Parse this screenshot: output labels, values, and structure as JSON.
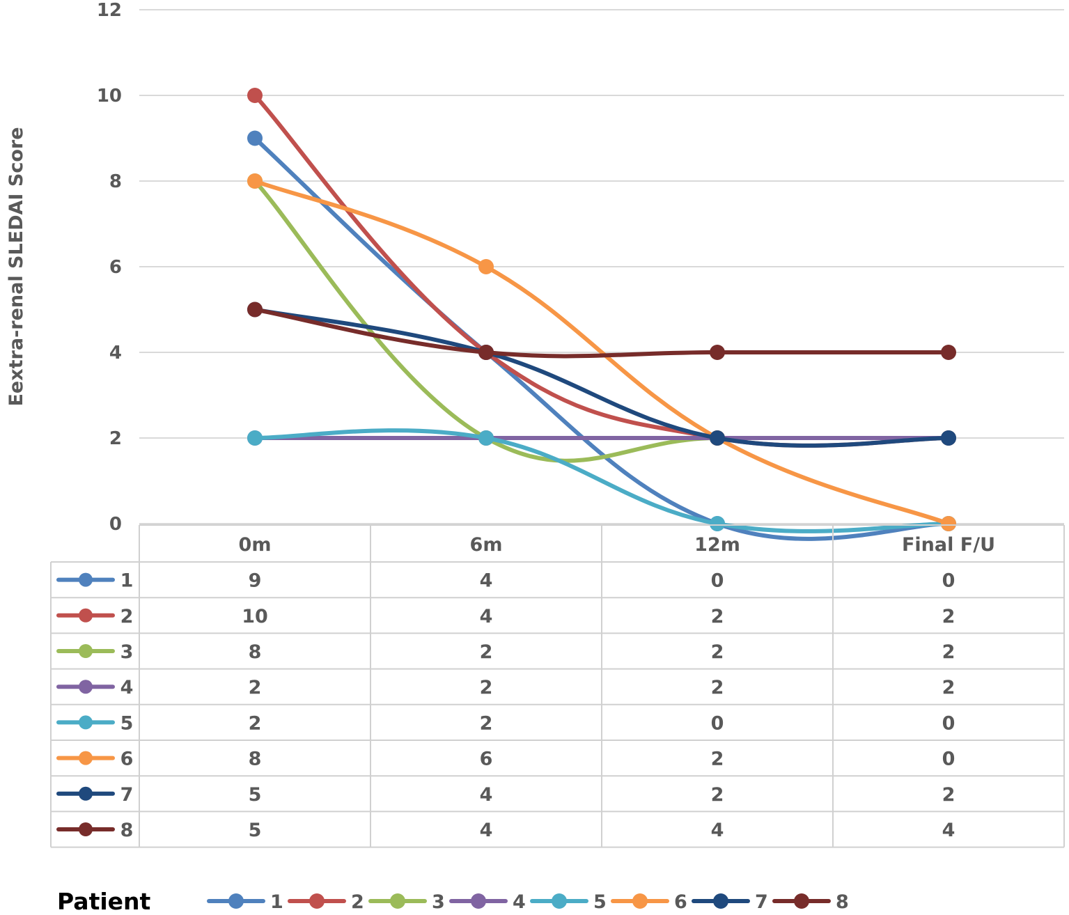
{
  "chart_data": {
    "type": "line",
    "title": "",
    "xlabel": "",
    "ylabel": "Eextra-renal SLEDAI Score",
    "ylim": [
      0,
      12
    ],
    "yticks": [
      0,
      2,
      4,
      6,
      8,
      10,
      12
    ],
    "grid": true,
    "categories": [
      "0m",
      "6m",
      "12m",
      "Final F/U"
    ],
    "series": [
      {
        "name": "1",
        "color": "#4F81BD",
        "values": [
          9,
          4,
          0,
          0
        ]
      },
      {
        "name": "2",
        "color": "#C0504D",
        "values": [
          10,
          4,
          2,
          2
        ]
      },
      {
        "name": "3",
        "color": "#9BBB59",
        "values": [
          8,
          2,
          2,
          2
        ]
      },
      {
        "name": "4",
        "color": "#8064A2",
        "values": [
          2,
          2,
          2,
          2
        ]
      },
      {
        "name": "5",
        "color": "#4BACC6",
        "values": [
          2,
          2,
          0,
          0
        ]
      },
      {
        "name": "6",
        "color": "#F79646",
        "values": [
          8,
          6,
          2,
          0
        ]
      },
      {
        "name": "7",
        "color": "#1F497D",
        "values": [
          5,
          4,
          2,
          2
        ]
      },
      {
        "name": "8",
        "color": "#772C2A",
        "values": [
          5,
          4,
          4,
          4
        ]
      }
    ],
    "data_table": true,
    "legend": {
      "title": "Patient",
      "position": "bottom"
    }
  }
}
